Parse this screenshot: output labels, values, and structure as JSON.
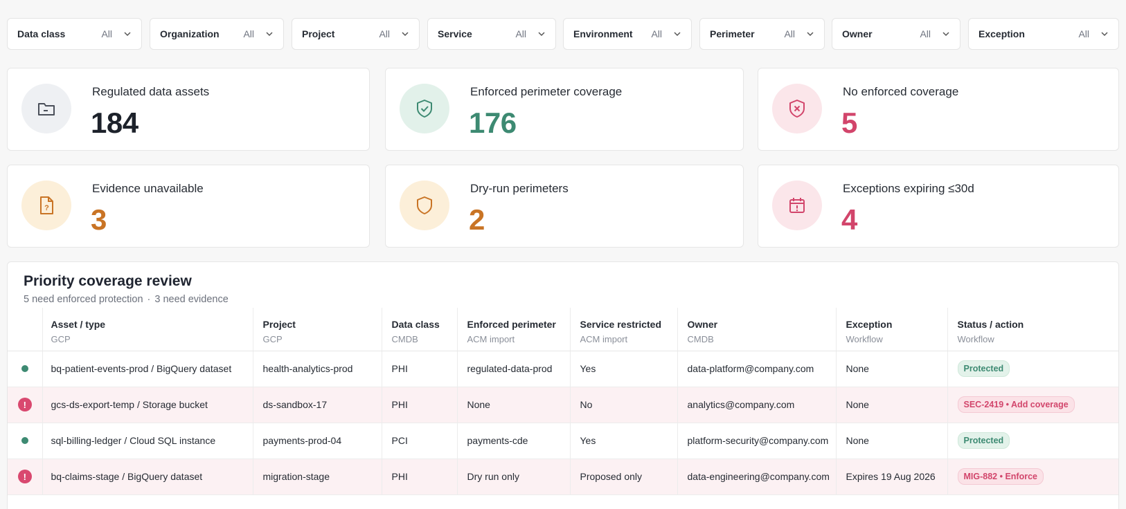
{
  "filters": [
    {
      "label": "Data class",
      "value": "All"
    },
    {
      "label": "Organization",
      "value": "All"
    },
    {
      "label": "Project",
      "value": "All"
    },
    {
      "label": "Service",
      "value": "All"
    },
    {
      "label": "Environment",
      "value": "All"
    },
    {
      "label": "Perimeter",
      "value": "All"
    },
    {
      "label": "Owner",
      "value": "All"
    },
    {
      "label": "Exception",
      "value": "All"
    }
  ],
  "stats": [
    {
      "label": "Regulated data assets",
      "value": "184",
      "icon": "folder-icon"
    },
    {
      "label": "Enforced perimeter coverage",
      "value": "176",
      "icon": "shield-check-icon"
    },
    {
      "label": "No enforced coverage",
      "value": "5",
      "icon": "shield-x-icon"
    },
    {
      "label": "Evidence unavailable",
      "value": "3",
      "icon": "document-question-icon"
    },
    {
      "label": "Dry-run perimeters",
      "value": "2",
      "icon": "shield-icon"
    },
    {
      "label": "Exceptions expiring ≤30d",
      "value": "4",
      "icon": "calendar-alert-icon"
    }
  ],
  "review": {
    "title": "Priority coverage review",
    "subtitle_a": "5 need enforced protection",
    "subtitle_sep": "·",
    "subtitle_b": "3 need evidence",
    "columns": [
      {
        "label": "Asset / type",
        "source": "GCP"
      },
      {
        "label": "Project",
        "source": "GCP"
      },
      {
        "label": "Data class",
        "source": "CMDB"
      },
      {
        "label": "Enforced perimeter",
        "source": "ACM import"
      },
      {
        "label": "Service restricted",
        "source": "ACM import"
      },
      {
        "label": "Owner",
        "source": "CMDB"
      },
      {
        "label": "Exception",
        "source": "Workflow"
      },
      {
        "label": "Status / action",
        "source": "Workflow"
      }
    ],
    "rows": [
      {
        "status": "ok",
        "asset": "bq-patient-events-prod / BigQuery dataset",
        "project": "health-analytics-prod",
        "data_class": "PHI",
        "perimeter": "regulated-data-prod",
        "service": "Yes",
        "owner": "data-platform@company.com",
        "exception": "None",
        "action": "Protected"
      },
      {
        "status": "alert",
        "asset": "gcs-ds-export-temp / Storage bucket",
        "project": "ds-sandbox-17",
        "data_class": "PHI",
        "perimeter": "None",
        "service": "No",
        "owner": "analytics@company.com",
        "exception": "None",
        "action": "SEC-2419 • Add coverage"
      },
      {
        "status": "ok",
        "asset": "sql-billing-ledger / Cloud SQL instance",
        "project": "payments-prod-04",
        "data_class": "PCI",
        "perimeter": "payments-cde",
        "service": "Yes",
        "owner": "platform-security@company.com",
        "exception": "None",
        "action": "Protected"
      },
      {
        "status": "alert",
        "asset": "bq-claims-stage / BigQuery dataset",
        "project": "migration-stage",
        "data_class": "PHI",
        "perimeter": "Dry run only",
        "service": "Proposed only",
        "owner": "data-engineering@company.com",
        "exception": "Expires 19 Aug 2026",
        "action": "MIG-882 • Enforce"
      }
    ]
  },
  "colors": {
    "green": "#3d8a72",
    "red": "#d2456b",
    "orange": "#c97425",
    "row_alert_bg": "#fcf1f3"
  }
}
